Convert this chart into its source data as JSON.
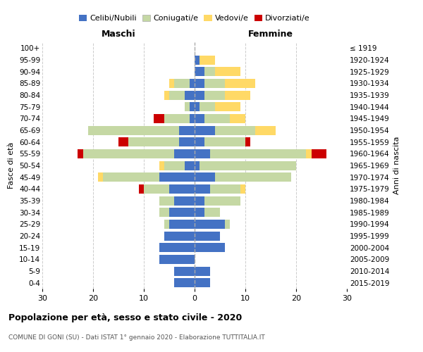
{
  "age_groups": [
    "0-4",
    "5-9",
    "10-14",
    "15-19",
    "20-24",
    "25-29",
    "30-34",
    "35-39",
    "40-44",
    "45-49",
    "50-54",
    "55-59",
    "60-64",
    "65-69",
    "70-74",
    "75-79",
    "80-84",
    "85-89",
    "90-94",
    "95-99",
    "100+"
  ],
  "birth_years": [
    "2015-2019",
    "2010-2014",
    "2005-2009",
    "2000-2004",
    "1995-1999",
    "1990-1994",
    "1985-1989",
    "1980-1984",
    "1975-1979",
    "1970-1974",
    "1965-1969",
    "1960-1964",
    "1955-1959",
    "1950-1954",
    "1945-1949",
    "1940-1944",
    "1935-1939",
    "1930-1934",
    "1925-1929",
    "1920-1924",
    "≤ 1919"
  ],
  "colors": {
    "celibi": "#4472C4",
    "coniugati": "#c5d8a4",
    "vedovi": "#FFD966",
    "divorziati": "#CC0000"
  },
  "male": {
    "celibi": [
      4,
      4,
      7,
      7,
      6,
      5,
      5,
      4,
      5,
      7,
      2,
      4,
      3,
      3,
      1,
      1,
      2,
      1,
      0,
      0,
      0
    ],
    "coniugati": [
      0,
      0,
      0,
      0,
      0,
      1,
      2,
      3,
      5,
      11,
      4,
      18,
      10,
      18,
      5,
      1,
      3,
      3,
      0,
      0,
      0
    ],
    "vedovi": [
      0,
      0,
      0,
      0,
      0,
      0,
      0,
      0,
      0,
      1,
      1,
      0,
      0,
      0,
      0,
      0,
      1,
      1,
      0,
      0,
      0
    ],
    "divorziati": [
      0,
      0,
      0,
      0,
      0,
      0,
      0,
      0,
      1,
      0,
      0,
      1,
      2,
      0,
      2,
      0,
      0,
      0,
      0,
      0,
      0
    ]
  },
  "female": {
    "celibi": [
      3,
      3,
      0,
      6,
      5,
      6,
      2,
      2,
      3,
      4,
      1,
      3,
      2,
      4,
      2,
      1,
      2,
      2,
      2,
      1,
      0
    ],
    "coniugati": [
      0,
      0,
      0,
      0,
      0,
      1,
      3,
      7,
      6,
      15,
      19,
      19,
      8,
      8,
      5,
      3,
      4,
      4,
      2,
      0,
      0
    ],
    "vedovi": [
      0,
      0,
      0,
      0,
      0,
      0,
      0,
      0,
      1,
      0,
      0,
      1,
      0,
      4,
      3,
      5,
      5,
      6,
      5,
      3,
      0
    ],
    "divorziati": [
      0,
      0,
      0,
      0,
      0,
      0,
      0,
      0,
      0,
      0,
      0,
      3,
      1,
      0,
      0,
      0,
      0,
      0,
      0,
      0,
      0
    ]
  },
  "xlim": 30,
  "title": "Popolazione per età, sesso e stato civile - 2020",
  "subtitle": "COMUNE DI GONI (SU) - Dati ISTAT 1° gennaio 2020 - Elaborazione TUTTITALIA.IT",
  "ylabel_left": "Fasce di età",
  "ylabel_right": "Anni di nascita",
  "xlabel_left": "Maschi",
  "xlabel_right": "Femmine"
}
